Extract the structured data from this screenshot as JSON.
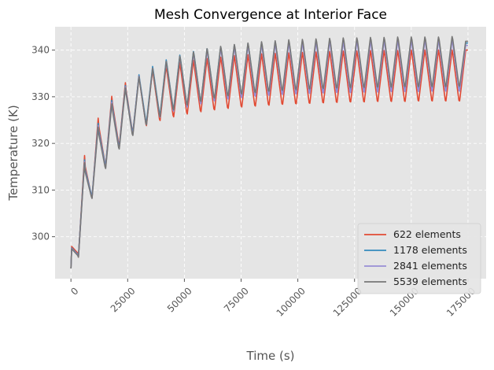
{
  "chart_data": {
    "type": "line",
    "title": "Mesh Convergence at Interior Face",
    "xlabel": "Time (s)",
    "ylabel": "Temperature (K)",
    "xlim": [
      -7000,
      183000
    ],
    "ylim": [
      291,
      345
    ],
    "x_ticks": [
      0,
      25000,
      50000,
      75000,
      100000,
      125000,
      150000,
      175000
    ],
    "x_tick_labels": [
      "0",
      "25000",
      "50000",
      "75000",
      "100000",
      "125000",
      "150000",
      "175000"
    ],
    "y_ticks": [
      300,
      310,
      320,
      330,
      340
    ],
    "y_tick_labels": [
      "300",
      "310",
      "320",
      "330",
      "340"
    ],
    "grid": true,
    "legend": "lower-right",
    "style": "ggplot",
    "cycle_period_s": 6000,
    "series": [
      {
        "name": "622 elements",
        "color": "#E24A33",
        "time": [
          0,
          300,
          3000,
          3300,
          6000,
          6300,
          9000,
          9300,
          12000,
          12300,
          15000,
          15300,
          18000,
          18300,
          21000,
          21300,
          24000,
          24300,
          27000,
          27300,
          30000,
          30300,
          33000,
          33300,
          36000,
          36300,
          39000,
          39300,
          42000,
          42300,
          45000,
          45300,
          48000,
          48300,
          51000,
          51300,
          54000,
          54300,
          57000,
          57300,
          60000,
          60300,
          63000,
          63300,
          66000,
          66300,
          69000,
          69300,
          72000,
          72300,
          75000,
          75300,
          78000,
          78300,
          81000,
          81300,
          84000,
          84300,
          87000,
          87300,
          90000,
          90300,
          93000,
          93300,
          96000,
          96300,
          99000,
          99300,
          102000,
          102300,
          105000,
          105300,
          108000,
          108300,
          111000,
          111300,
          114000,
          114300,
          117000,
          117300,
          120000,
          120300,
          123000,
          123300,
          126000,
          126300,
          129000,
          129300,
          132000,
          132300,
          135000,
          135300,
          138000,
          138300,
          141000,
          141300,
          144000,
          144300,
          147000,
          147300,
          150000,
          150300,
          153000,
          153300,
          156000,
          156300,
          159000,
          159300,
          162000,
          162300,
          165000,
          165300,
          168000,
          168300,
          171000,
          171300,
          174000,
          175000
        ],
        "temperature": [
          293.2,
          297.9,
          296.5,
          295.6,
          317.4,
          315.0,
          308.9,
          308.3,
          325.4,
          323.6,
          315.7,
          315.1,
          330.1,
          328.5,
          320.0,
          319.5,
          333.0,
          331.5,
          322.7,
          322.3,
          334.6,
          333.2,
          324.2,
          323.8,
          335.9,
          334.6,
          325.2,
          324.9,
          336.7,
          335.5,
          326.0,
          325.7,
          337.3,
          336.2,
          326.6,
          326.3,
          337.8,
          336.8,
          327.1,
          326.8,
          338.2,
          337.2,
          327.4,
          327.2,
          338.5,
          337.6,
          327.7,
          327.5,
          338.8,
          337.9,
          328.0,
          327.8,
          339.0,
          338.1,
          328.2,
          328.0,
          339.2,
          338.3,
          328.4,
          328.2,
          339.3,
          338.5,
          328.5,
          328.4,
          339.4,
          338.6,
          328.6,
          328.5,
          339.5,
          338.7,
          328.7,
          328.6,
          339.6,
          338.8,
          328.8,
          328.7,
          339.7,
          338.9,
          328.9,
          328.8,
          339.8,
          339.0,
          329.0,
          328.9,
          339.8,
          339.0,
          329.0,
          328.9,
          339.9,
          339.1,
          329.1,
          329.0,
          339.9,
          339.1,
          329.1,
          329.0,
          339.9,
          339.1,
          329.1,
          329.0,
          340.0,
          339.2,
          329.2,
          329.1,
          340.0,
          339.2,
          329.2,
          329.1,
          340.0,
          339.2,
          329.2,
          329.1,
          340.0,
          339.2,
          329.2,
          329.1,
          340.0,
          340.0
        ]
      },
      {
        "name": "1178 elements",
        "color": "#348ABD",
        "time": [
          0,
          300,
          3000,
          3300,
          6000,
          6300,
          9000,
          9300,
          12000,
          12300,
          15000,
          15300,
          18000,
          18300,
          21000,
          21300,
          24000,
          24300,
          27000,
          27300,
          30000,
          30300,
          33000,
          33300,
          36000,
          36300,
          39000,
          39300,
          42000,
          42300,
          45000,
          45300,
          48000,
          48300,
          51000,
          51300,
          54000,
          54300,
          57000,
          57300,
          60000,
          60300,
          63000,
          63300,
          66000,
          66300,
          69000,
          69300,
          72000,
          72300,
          75000,
          75300,
          78000,
          78300,
          81000,
          81300,
          84000,
          84300,
          87000,
          87300,
          90000,
          90300,
          93000,
          93300,
          96000,
          96300,
          99000,
          99300,
          102000,
          102300,
          105000,
          105300,
          108000,
          108300,
          111000,
          111300,
          114000,
          114300,
          117000,
          117300,
          120000,
          120300,
          123000,
          123300,
          126000,
          126300,
          129000,
          129300,
          132000,
          132300,
          135000,
          135300,
          138000,
          138300,
          141000,
          141300,
          144000,
          144300,
          147000,
          147300,
          150000,
          150300,
          153000,
          153300,
          156000,
          156300,
          159000,
          159300,
          162000,
          162300,
          165000,
          165300,
          168000,
          168300,
          171000,
          171300,
          174000,
          175000
        ],
        "temperature": [
          293.2,
          297.6,
          296.2,
          295.8,
          316.5,
          314.4,
          309.0,
          308.6,
          324.3,
          322.7,
          315.6,
          315.2,
          329.2,
          327.8,
          319.6,
          319.3,
          332.4,
          331.1,
          322.6,
          322.3,
          334.7,
          333.6,
          324.8,
          324.5,
          336.5,
          335.5,
          326.4,
          326.1,
          337.9,
          336.9,
          327.6,
          327.4,
          338.9,
          338.0,
          328.5,
          328.3,
          339.7,
          338.9,
          329.2,
          329.0,
          340.3,
          339.5,
          329.8,
          329.6,
          340.7,
          340.0,
          330.2,
          330.0,
          341.1,
          340.4,
          330.5,
          330.4,
          341.4,
          340.7,
          330.8,
          330.6,
          341.6,
          340.9,
          331.0,
          330.8,
          341.8,
          341.1,
          331.1,
          331.0,
          341.9,
          341.3,
          331.2,
          331.1,
          342.0,
          341.4,
          331.3,
          331.2,
          342.1,
          341.5,
          331.4,
          331.3,
          342.2,
          341.6,
          331.5,
          331.4,
          342.2,
          341.6,
          331.5,
          331.4,
          342.3,
          341.7,
          331.6,
          331.5,
          342.3,
          341.7,
          331.6,
          331.5,
          342.4,
          341.8,
          331.7,
          331.6,
          342.4,
          341.8,
          331.7,
          331.6,
          342.4,
          341.8,
          331.7,
          331.6,
          342.5,
          341.9,
          331.8,
          331.7,
          342.5,
          341.9,
          331.8,
          331.7,
          342.5,
          341.9,
          331.8,
          331.7,
          341.5,
          341.5
        ]
      },
      {
        "name": "2841 elements",
        "color": "#988ED5",
        "time": [
          0,
          300,
          3000,
          3300,
          6000,
          6300,
          9000,
          9300,
          12000,
          12300,
          15000,
          15300,
          18000,
          18300,
          21000,
          21300,
          24000,
          24300,
          27000,
          27300,
          30000,
          30300,
          33000,
          33300,
          36000,
          36300,
          39000,
          39300,
          42000,
          42300,
          45000,
          45300,
          48000,
          48300,
          51000,
          51300,
          54000,
          54300,
          57000,
          57300,
          60000,
          60300,
          63000,
          63300,
          66000,
          66300,
          69000,
          69300,
          72000,
          72300,
          75000,
          75300,
          78000,
          78300,
          81000,
          81300,
          84000,
          84300,
          87000,
          87300,
          90000,
          90300,
          93000,
          93300,
          96000,
          96300,
          99000,
          99300,
          102000,
          102300,
          105000,
          105300,
          108000,
          108300,
          111000,
          111300,
          114000,
          114300,
          117000,
          117300,
          120000,
          120300,
          123000,
          123300,
          126000,
          126300,
          129000,
          129300,
          132000,
          132300,
          135000,
          135300,
          138000,
          138300,
          141000,
          141300,
          144000,
          144300,
          147000,
          147300,
          150000,
          150300,
          153000,
          153300,
          156000,
          156300,
          159000,
          159300,
          162000,
          162300,
          165000,
          165300,
          168000,
          168300,
          171000,
          171300,
          174000,
          175000
        ],
        "temperature": [
          293.2,
          297.5,
          296.1,
          295.7,
          316.1,
          314.0,
          308.7,
          308.3,
          323.8,
          322.2,
          315.2,
          314.8,
          328.8,
          327.4,
          319.3,
          319.0,
          332.1,
          330.8,
          322.2,
          321.9,
          334.4,
          333.3,
          324.3,
          324.0,
          336.1,
          335.1,
          325.9,
          325.6,
          337.4,
          336.5,
          327.1,
          326.9,
          338.4,
          337.6,
          328.0,
          327.8,
          339.2,
          338.4,
          328.7,
          328.5,
          339.8,
          339.0,
          329.3,
          329.1,
          340.3,
          339.5,
          329.7,
          329.5,
          340.6,
          339.9,
          330.0,
          329.8,
          340.9,
          340.2,
          330.3,
          330.1,
          341.1,
          340.4,
          330.5,
          330.3,
          341.3,
          340.6,
          330.6,
          330.5,
          341.4,
          340.8,
          330.7,
          330.6,
          341.5,
          340.9,
          330.8,
          330.7,
          341.6,
          341.0,
          330.9,
          330.8,
          341.7,
          341.1,
          331.0,
          330.9,
          341.7,
          341.1,
          331.0,
          330.9,
          341.8,
          341.2,
          331.1,
          331.0,
          341.8,
          341.2,
          331.1,
          331.0,
          341.9,
          341.3,
          331.2,
          331.1,
          341.9,
          341.3,
          331.2,
          331.1,
          341.9,
          341.3,
          331.2,
          331.1,
          342.0,
          341.4,
          331.3,
          331.2,
          342.0,
          341.4,
          331.3,
          331.2,
          342.0,
          341.4,
          331.3,
          331.2,
          341.0,
          341.0
        ]
      },
      {
        "name": "5539 elements",
        "color": "#777777",
        "time": [
          0,
          300,
          3000,
          3300,
          6000,
          6300,
          9000,
          9300,
          12000,
          12300,
          15000,
          15300,
          18000,
          18300,
          21000,
          21300,
          24000,
          24300,
          27000,
          27300,
          30000,
          30300,
          33000,
          33300,
          36000,
          36300,
          39000,
          39300,
          42000,
          42300,
          45000,
          45300,
          48000,
          48300,
          51000,
          51300,
          54000,
          54300,
          57000,
          57300,
          60000,
          60300,
          63000,
          63300,
          66000,
          66300,
          69000,
          69300,
          72000,
          72300,
          75000,
          75300,
          78000,
          78300,
          81000,
          81300,
          84000,
          84300,
          87000,
          87300,
          90000,
          90300,
          93000,
          93300,
          96000,
          96300,
          99000,
          99300,
          102000,
          102300,
          105000,
          105300,
          108000,
          108300,
          111000,
          111300,
          114000,
          114300,
          117000,
          117300,
          120000,
          120300,
          123000,
          123300,
          126000,
          126300,
          129000,
          129300,
          132000,
          132300,
          135000,
          135300,
          138000,
          138300,
          141000,
          141300,
          144000,
          144300,
          147000,
          147300,
          150000,
          150300,
          153000,
          153300,
          156000,
          156300,
          159000,
          159300,
          162000,
          162300,
          165000,
          165300,
          168000,
          168300,
          171000,
          171300,
          174000,
          175000
        ],
        "temperature": [
          293.2,
          297.4,
          296.0,
          295.6,
          315.9,
          313.8,
          308.6,
          308.2,
          323.5,
          321.9,
          315.0,
          314.6,
          328.5,
          327.1,
          319.1,
          318.8,
          331.9,
          330.6,
          322.0,
          321.7,
          334.3,
          333.2,
          324.3,
          324.0,
          336.1,
          335.1,
          326.0,
          325.7,
          337.6,
          336.7,
          327.4,
          327.2,
          338.7,
          337.9,
          328.4,
          328.2,
          339.6,
          338.8,
          329.2,
          329.0,
          340.3,
          339.5,
          329.9,
          329.7,
          340.8,
          340.1,
          330.4,
          330.2,
          341.2,
          340.5,
          330.8,
          330.6,
          341.5,
          340.8,
          331.1,
          330.9,
          341.8,
          341.1,
          331.3,
          331.2,
          342.0,
          341.3,
          331.5,
          331.4,
          342.2,
          341.5,
          331.7,
          331.5,
          342.3,
          341.7,
          331.8,
          331.7,
          342.4,
          341.8,
          331.9,
          331.8,
          342.5,
          341.9,
          332.0,
          331.9,
          342.6,
          342.0,
          332.1,
          332.0,
          342.6,
          342.0,
          332.1,
          332.0,
          342.7,
          342.1,
          332.2,
          332.1,
          342.7,
          342.1,
          332.2,
          332.1,
          342.8,
          342.2,
          332.3,
          332.2,
          342.8,
          342.2,
          332.3,
          332.2,
          342.8,
          342.2,
          332.3,
          332.2,
          342.8,
          342.2,
          332.3,
          332.2,
          342.9,
          342.3,
          332.4,
          332.3,
          341.9,
          341.9
        ]
      }
    ]
  }
}
